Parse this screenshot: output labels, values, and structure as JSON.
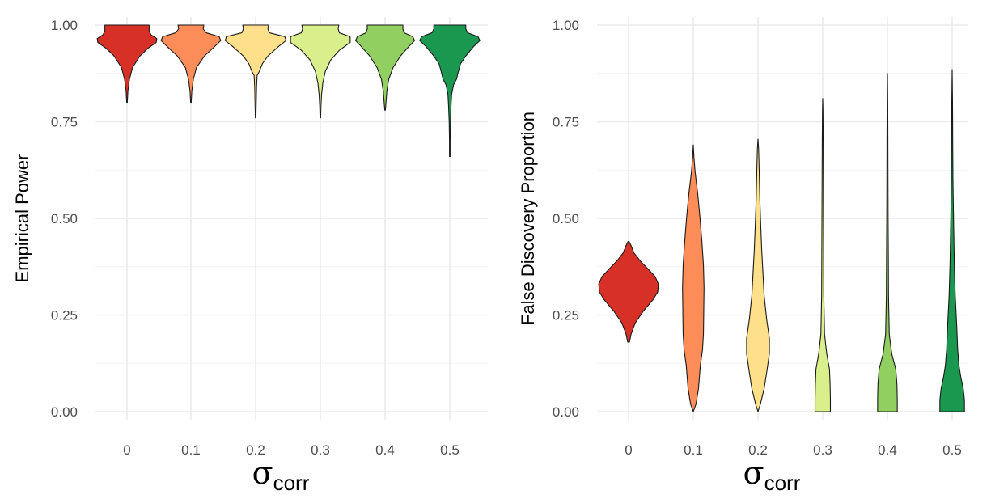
{
  "colors": {
    "0": "#d73027",
    "0.1": "#fc8d59",
    "0.2": "#fee08b",
    "0.3": "#d9ef8b",
    "0.4": "#91cf60",
    "0.5": "#1a9850"
  },
  "chart_data": [
    {
      "type": "violin",
      "panel": "left",
      "ylabel": "Empirical Power",
      "xlabel_symbol": "σ",
      "xlabel_subscript": "corr",
      "ylim": [
        0,
        1
      ],
      "y_ticks": [
        "0.00",
        "0.25",
        "0.50",
        "0.75",
        "1.00"
      ],
      "categories": [
        "0",
        "0.1",
        "0.2",
        "0.3",
        "0.4",
        "0.5"
      ],
      "series": [
        {
          "category": "0",
          "min": 0.8,
          "max": 1.0,
          "density": [
            [
              0.8,
              0.01
            ],
            [
              0.83,
              0.03
            ],
            [
              0.86,
              0.08
            ],
            [
              0.89,
              0.18
            ],
            [
              0.92,
              0.42
            ],
            [
              0.94,
              0.68
            ],
            [
              0.955,
              0.95
            ],
            [
              0.965,
              0.97
            ],
            [
              0.975,
              0.78
            ],
            [
              0.985,
              0.72
            ],
            [
              1.0,
              0.72
            ]
          ]
        },
        {
          "category": "0.1",
          "min": 0.8,
          "max": 1.0,
          "density": [
            [
              0.8,
              0.01
            ],
            [
              0.83,
              0.03
            ],
            [
              0.86,
              0.08
            ],
            [
              0.89,
              0.18
            ],
            [
              0.92,
              0.44
            ],
            [
              0.945,
              0.78
            ],
            [
              0.96,
              0.97
            ],
            [
              0.97,
              0.92
            ],
            [
              0.98,
              0.5
            ],
            [
              0.99,
              0.4
            ],
            [
              1.0,
              0.42
            ]
          ]
        },
        {
          "category": "0.2",
          "min": 0.76,
          "max": 1.0,
          "density": [
            [
              0.76,
              0.01
            ],
            [
              0.8,
              0.02
            ],
            [
              0.84,
              0.03
            ],
            [
              0.87,
              0.05
            ],
            [
              0.88,
              0.12
            ],
            [
              0.9,
              0.22
            ],
            [
              0.92,
              0.4
            ],
            [
              0.945,
              0.75
            ],
            [
              0.96,
              0.99
            ],
            [
              0.97,
              0.95
            ],
            [
              0.98,
              0.45
            ],
            [
              0.99,
              0.4
            ],
            [
              1.0,
              0.42
            ]
          ]
        },
        {
          "category": "0.3",
          "min": 0.76,
          "max": 1.0,
          "density": [
            [
              0.76,
              0.01
            ],
            [
              0.79,
              0.02
            ],
            [
              0.82,
              0.04
            ],
            [
              0.85,
              0.08
            ],
            [
              0.88,
              0.16
            ],
            [
              0.91,
              0.34
            ],
            [
              0.935,
              0.62
            ],
            [
              0.955,
              0.97
            ],
            [
              0.97,
              0.97
            ],
            [
              0.98,
              0.62
            ],
            [
              0.99,
              0.58
            ],
            [
              1.0,
              0.6
            ]
          ]
        },
        {
          "category": "0.4",
          "min": 0.78,
          "max": 1.0,
          "density": [
            [
              0.78,
              0.01
            ],
            [
              0.8,
              0.03
            ],
            [
              0.83,
              0.06
            ],
            [
              0.86,
              0.12
            ],
            [
              0.89,
              0.26
            ],
            [
              0.92,
              0.5
            ],
            [
              0.945,
              0.78
            ],
            [
              0.96,
              0.96
            ],
            [
              0.97,
              0.9
            ],
            [
              0.98,
              0.62
            ],
            [
              0.99,
              0.58
            ],
            [
              1.0,
              0.58
            ]
          ]
        },
        {
          "category": "0.5",
          "min": 0.66,
          "max": 1.0,
          "density": [
            [
              0.66,
              0.01
            ],
            [
              0.7,
              0.01
            ],
            [
              0.75,
              0.02
            ],
            [
              0.79,
              0.04
            ],
            [
              0.82,
              0.06
            ],
            [
              0.845,
              0.12
            ],
            [
              0.86,
              0.22
            ],
            [
              0.88,
              0.28
            ],
            [
              0.9,
              0.35
            ],
            [
              0.92,
              0.52
            ],
            [
              0.945,
              0.78
            ],
            [
              0.96,
              0.98
            ],
            [
              0.97,
              0.92
            ],
            [
              0.98,
              0.58
            ],
            [
              0.99,
              0.52
            ],
            [
              1.0,
              0.52
            ]
          ]
        }
      ]
    },
    {
      "type": "violin",
      "panel": "right",
      "ylabel": "False Discovery Proportion",
      "xlabel_symbol": "σ",
      "xlabel_subscript": "corr",
      "ylim": [
        0,
        1
      ],
      "y_ticks": [
        "0.00",
        "0.25",
        "0.50",
        "0.75",
        "1.00"
      ],
      "categories": [
        "0",
        "0.1",
        "0.2",
        "0.3",
        "0.4",
        "0.5"
      ],
      "series": [
        {
          "category": "0",
          "min": 0.18,
          "max": 0.44,
          "density": [
            [
              0.18,
              0.03
            ],
            [
              0.2,
              0.08
            ],
            [
              0.23,
              0.22
            ],
            [
              0.26,
              0.48
            ],
            [
              0.29,
              0.8
            ],
            [
              0.31,
              0.95
            ],
            [
              0.33,
              0.97
            ],
            [
              0.35,
              0.86
            ],
            [
              0.37,
              0.62
            ],
            [
              0.39,
              0.38
            ],
            [
              0.41,
              0.18
            ],
            [
              0.43,
              0.08
            ],
            [
              0.44,
              0.02
            ]
          ]
        },
        {
          "category": "0.1",
          "min": 0.0,
          "max": 0.69,
          "density": [
            [
              0.0,
              0.0
            ],
            [
              0.02,
              0.09
            ],
            [
              0.06,
              0.17
            ],
            [
              0.12,
              0.23
            ],
            [
              0.16,
              0.3
            ],
            [
              0.2,
              0.33
            ],
            [
              0.26,
              0.34
            ],
            [
              0.32,
              0.35
            ],
            [
              0.38,
              0.33
            ],
            [
              0.44,
              0.28
            ],
            [
              0.5,
              0.22
            ],
            [
              0.56,
              0.15
            ],
            [
              0.62,
              0.06
            ],
            [
              0.66,
              0.02
            ],
            [
              0.69,
              0.0
            ]
          ]
        },
        {
          "category": "0.2",
          "min": 0.0,
          "max": 0.705,
          "density": [
            [
              0.0,
              0.0
            ],
            [
              0.02,
              0.08
            ],
            [
              0.06,
              0.2
            ],
            [
              0.1,
              0.28
            ],
            [
              0.15,
              0.37
            ],
            [
              0.19,
              0.37
            ],
            [
              0.24,
              0.28
            ],
            [
              0.3,
              0.2
            ],
            [
              0.36,
              0.16
            ],
            [
              0.42,
              0.12
            ],
            [
              0.48,
              0.09
            ],
            [
              0.55,
              0.06
            ],
            [
              0.62,
              0.04
            ],
            [
              0.68,
              0.02
            ],
            [
              0.705,
              0.0
            ]
          ]
        },
        {
          "category": "0.3",
          "min": 0.0,
          "max": 0.81,
          "density": [
            [
              0.0,
              0.25
            ],
            [
              0.03,
              0.25
            ],
            [
              0.07,
              0.24
            ],
            [
              0.11,
              0.22
            ],
            [
              0.15,
              0.13
            ],
            [
              0.2,
              0.06
            ],
            [
              0.3,
              0.035
            ],
            [
              0.4,
              0.03
            ],
            [
              0.5,
              0.025
            ],
            [
              0.6,
              0.02
            ],
            [
              0.7,
              0.015
            ],
            [
              0.78,
              0.008
            ],
            [
              0.81,
              0.0
            ]
          ]
        },
        {
          "category": "0.4",
          "min": 0.0,
          "max": 0.875,
          "density": [
            [
              0.0,
              0.32
            ],
            [
              0.03,
              0.32
            ],
            [
              0.07,
              0.31
            ],
            [
              0.11,
              0.27
            ],
            [
              0.15,
              0.14
            ],
            [
              0.2,
              0.06
            ],
            [
              0.3,
              0.035
            ],
            [
              0.4,
              0.03
            ],
            [
              0.5,
              0.022
            ],
            [
              0.6,
              0.018
            ],
            [
              0.7,
              0.015
            ],
            [
              0.8,
              0.01
            ],
            [
              0.875,
              0.0
            ]
          ]
        },
        {
          "category": "0.5",
          "min": 0.0,
          "max": 0.885,
          "density": [
            [
              0.0,
              0.4
            ],
            [
              0.03,
              0.4
            ],
            [
              0.06,
              0.36
            ],
            [
              0.09,
              0.28
            ],
            [
              0.12,
              0.22
            ],
            [
              0.16,
              0.18
            ],
            [
              0.22,
              0.15
            ],
            [
              0.3,
              0.1
            ],
            [
              0.38,
              0.07
            ],
            [
              0.45,
              0.055
            ],
            [
              0.52,
              0.04
            ],
            [
              0.6,
              0.025
            ],
            [
              0.7,
              0.018
            ],
            [
              0.8,
              0.012
            ],
            [
              0.885,
              0.0
            ]
          ]
        }
      ]
    }
  ]
}
